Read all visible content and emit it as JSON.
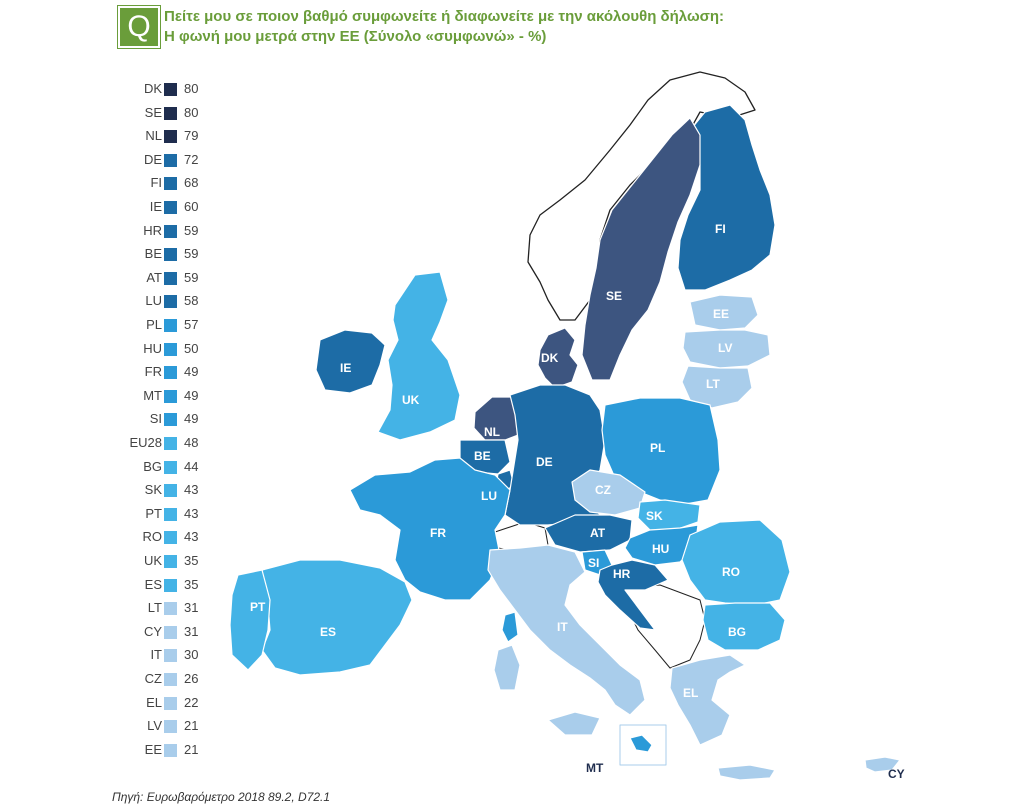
{
  "question": {
    "badge": "Q",
    "line1": "Πείτε μου σε ποιον βαθμό συμφωνείτε ή διαφωνείτε με την ακόλουθη δήλωση:",
    "line2": "Η φωνή μου μετρά στην ΕΕ  (Σύνολο «συμφωνώ» - %)"
  },
  "legend": [
    {
      "code": "DK",
      "value": "80",
      "color": "#1f2d4e"
    },
    {
      "code": "SE",
      "value": "80",
      "color": "#1f2d4e"
    },
    {
      "code": "NL",
      "value": "79",
      "color": "#1f2d4e"
    },
    {
      "code": "DE",
      "value": "72",
      "color": "#1d6ca6"
    },
    {
      "code": "FI",
      "value": "68",
      "color": "#1d6ca6"
    },
    {
      "code": "IE",
      "value": "60",
      "color": "#1d6ca6"
    },
    {
      "code": "HR",
      "value": "59",
      "color": "#1d6ca6"
    },
    {
      "code": "BE",
      "value": "59",
      "color": "#1d6ca6"
    },
    {
      "code": "AT",
      "value": "59",
      "color": "#1d6ca6"
    },
    {
      "code": "LU",
      "value": "58",
      "color": "#1d6ca6"
    },
    {
      "code": "PL",
      "value": "57",
      "color": "#2b9ad8"
    },
    {
      "code": "HU",
      "value": "50",
      "color": "#2b9ad8"
    },
    {
      "code": "FR",
      "value": "49",
      "color": "#2b9ad8"
    },
    {
      "code": "MT",
      "value": "49",
      "color": "#2b9ad8"
    },
    {
      "code": "SI",
      "value": "49",
      "color": "#2b9ad8"
    },
    {
      "code": "EU28",
      "value": "48",
      "color": "#44b3e6"
    },
    {
      "code": "BG",
      "value": "44",
      "color": "#44b3e6"
    },
    {
      "code": "SK",
      "value": "43",
      "color": "#44b3e6"
    },
    {
      "code": "PT",
      "value": "43",
      "color": "#44b3e6"
    },
    {
      "code": "RO",
      "value": "43",
      "color": "#44b3e6"
    },
    {
      "code": "UK",
      "value": "35",
      "color": "#44b3e6"
    },
    {
      "code": "ES",
      "value": "35",
      "color": "#44b3e6"
    },
    {
      "code": "LT",
      "value": "31",
      "color": "#a9cdeb"
    },
    {
      "code": "CY",
      "value": "31",
      "color": "#a9cdeb"
    },
    {
      "code": "IT",
      "value": "30",
      "color": "#a9cdeb"
    },
    {
      "code": "CZ",
      "value": "26",
      "color": "#a9cdeb"
    },
    {
      "code": "EL",
      "value": "22",
      "color": "#a9cdeb"
    },
    {
      "code": "LV",
      "value": "21",
      "color": "#a9cdeb"
    },
    {
      "code": "EE",
      "value": "21",
      "color": "#a9cdeb"
    }
  ],
  "map_labels": {
    "FI": "FI",
    "SE": "SE",
    "EE": "EE",
    "LV": "LV",
    "LT": "LT",
    "DK": "DK",
    "IE": "IE",
    "UK": "UK",
    "NL": "NL",
    "BE": "BE",
    "LU": "LU",
    "DE": "DE",
    "PL": "PL",
    "CZ": "CZ",
    "SK": "SK",
    "AT": "AT",
    "HU": "HU",
    "SI": "SI",
    "HR": "HR",
    "RO": "RO",
    "BG": "BG",
    "FR": "FR",
    "PT": "PT",
    "ES": "ES",
    "IT": "IT",
    "EL": "EL",
    "MT": "MT",
    "CY": "CY"
  },
  "colors": {
    "dark_navy": "#1f2d4e",
    "map_navy": "#3d5580",
    "mid_blue": "#1d6ca6",
    "blue": "#2b9ad8",
    "light_blue": "#44b3e6",
    "pale_blue": "#a9cdeb",
    "accent_green": "#6a9d3a"
  },
  "source": "Πηγή: Ευρωβαρόμετρο 2018 89.2, D72.1"
}
